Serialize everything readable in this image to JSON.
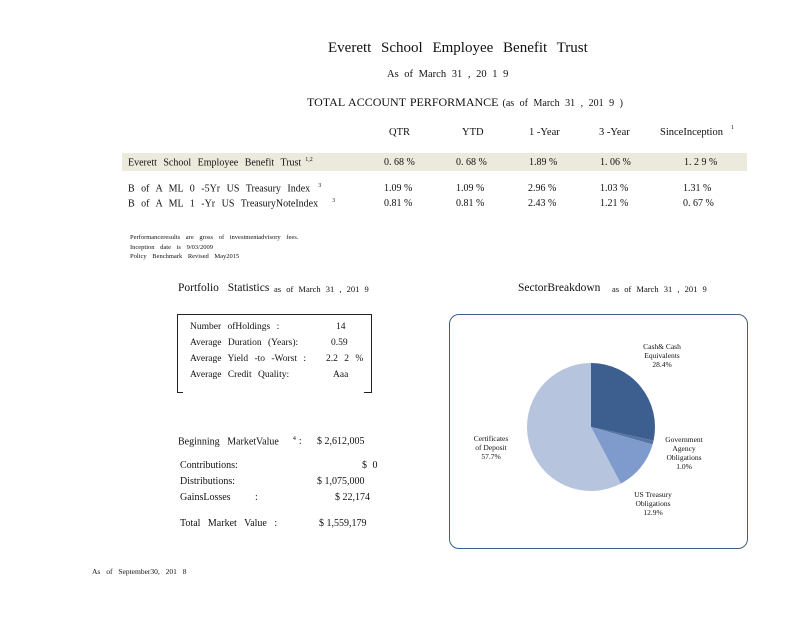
{
  "header": {
    "title": "Everett School Employee Benefit Trust",
    "subtitle": "As of March 31 , 20 1 9"
  },
  "performance": {
    "title": "TOTAL ACCOUNT PERFORMANCE",
    "asof": "(as of March 31 , 201 9 )",
    "columns": [
      "QTR",
      "YTD",
      "1 -Year",
      "3 -Year",
      "SinceInception"
    ],
    "since_inception_note": "1",
    "rows": [
      {
        "label": "Everett School Employee Benefit Trust",
        "note": "1,2",
        "values": [
          "0. 68 %",
          "0. 68 %",
          "1.89 %",
          "1. 06 %",
          "1. 2 9 %"
        ]
      },
      {
        "label": "B of A ML 0 -5Yr US Treasury Index",
        "note": "3",
        "values": [
          "1.09 %",
          "1.09 %",
          "2.96 %",
          "1.03 %",
          "1.31 %"
        ]
      },
      {
        "label": "B of A ML 1 -Yr US TreasuryNoteIndex",
        "note": "3",
        "values": [
          "0.81 %",
          "0.81 %",
          "2.43 %",
          "1.21 %",
          "0. 67 %"
        ]
      }
    ],
    "footnotes": [
      "Performanceresults are gross of investmentadvisory fees.",
      "Inception date is 9/03/2009",
      "Policy Benchmark Revised May2015"
    ]
  },
  "portfolio_stats": {
    "title": "Portfolio Statistics",
    "asof": "as of March 31 , 201 9",
    "items": [
      {
        "label": "Number ofHoldings :",
        "value": "14"
      },
      {
        "label": "Average Duration (Years):",
        "value": "0.59"
      },
      {
        "label": "Average Yield -to -Worst :",
        "value": "2.2 2 %"
      },
      {
        "label": "Average Credit Quality:",
        "value": "Aaa"
      }
    ]
  },
  "market_value": {
    "beginning_label": "Beginning MarketValue",
    "beginning_note": "4",
    "beginning_colon": ":",
    "beginning_value": "$ 2,612,005",
    "contributions_label": "Contributions:",
    "contributions_value": "$ 0",
    "distributions_label": "Distributions:",
    "distributions_value": "$ 1,075,000",
    "gains_label": "GainsLosses :",
    "gains_value": "$ 22,174",
    "total_label": "Total Market Value :",
    "total_value": "$ 1,559,179"
  },
  "sector": {
    "title": "SectorBreakdown",
    "asof": "as of March 31 , 201 9"
  },
  "chart_data": {
    "type": "pie",
    "title": "",
    "slices": [
      {
        "name": "Cash& Cash Equivalents",
        "value": 28.4,
        "label": "28.4%",
        "color": "#3c5f90"
      },
      {
        "name": "Government Agency Obligations",
        "value": 1.0,
        "label": "1.0%",
        "color": "#5673a3"
      },
      {
        "name": "US Treasury Obligations",
        "value": 12.9,
        "label": "12.9%",
        "color": "#7f9acc"
      },
      {
        "name": "Certificates of Deposit",
        "value": 57.7,
        "label": "57.7%",
        "color": "#b6c4de"
      }
    ],
    "labels": {
      "cash": [
        "Cash& Cash",
        "Equivalents",
        "28.4%"
      ],
      "gov": [
        "Government",
        "Agency",
        "Obligations",
        "1.0%"
      ],
      "ust": [
        "US Treasury",
        "Obligations",
        "12.9%"
      ],
      "cd": [
        "Certificates",
        "of Deposit",
        "57.7%"
      ]
    }
  },
  "footer": {
    "text": "As of September30, 201 8"
  }
}
